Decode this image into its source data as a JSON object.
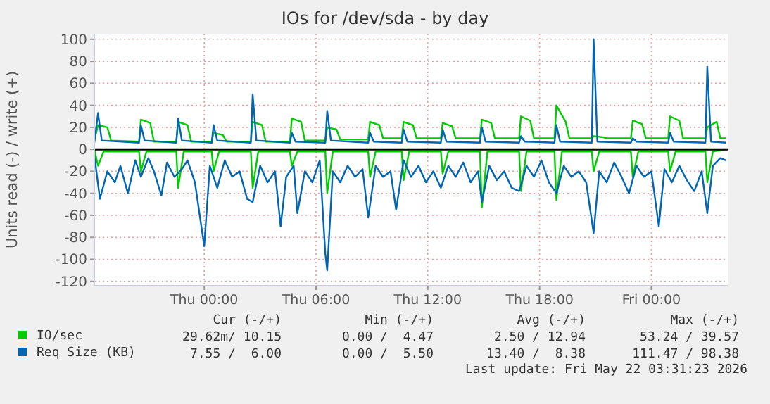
{
  "chart_data": {
    "type": "line",
    "title": "IOs for /dev/sda - by day",
    "ylabel": "Units read (-) / write (+)",
    "xlim": [
      "2026-05-20T18:06",
      "2026-05-22T04:06"
    ],
    "xticks": [
      {
        "value": "2026-05-21T00:00",
        "label": "Thu 00:00"
      },
      {
        "value": "2026-05-21T06:00",
        "label": "Thu 06:00"
      },
      {
        "value": "2026-05-21T12:00",
        "label": "Thu 12:00"
      },
      {
        "value": "2026-05-21T18:00",
        "label": "Thu 18:00"
      },
      {
        "value": "2026-05-22T00:00",
        "label": "Fri 00:00"
      }
    ],
    "ylim": [
      -124,
      105
    ],
    "yticks": [
      -120,
      -100,
      -80,
      -60,
      -40,
      -20,
      0,
      20,
      40,
      60,
      80,
      100
    ],
    "grid": true,
    "legend": "bottom",
    "line_style": "solid",
    "ref_lines": [
      {
        "axis": "y",
        "value": 0,
        "color": "#000000"
      }
    ],
    "series": [
      {
        "color": "#00cc00",
        "x": [
          "2026-05-20T18:06",
          "2026-05-20T18:18",
          "2026-05-20T18:36",
          "2026-05-20T20:30",
          "2026-05-20T20:36",
          "2026-05-20T20:54",
          "2026-05-20T22:30",
          "2026-05-20T22:36",
          "2026-05-20T22:54",
          "2026-05-21T00:24",
          "2026-05-21T00:30",
          "2026-05-21T00:48",
          "2026-05-21T02:30",
          "2026-05-21T02:36",
          "2026-05-21T02:54",
          "2026-05-21T04:36",
          "2026-05-21T04:42",
          "2026-05-21T05:00",
          "2026-05-21T06:30",
          "2026-05-21T06:36",
          "2026-05-21T06:54",
          "2026-05-21T08:48",
          "2026-05-21T08:54",
          "2026-05-21T09:12",
          "2026-05-21T10:36",
          "2026-05-21T10:42",
          "2026-05-21T11:00",
          "2026-05-21T12:42",
          "2026-05-21T12:48",
          "2026-05-21T13:06",
          "2026-05-21T14:48",
          "2026-05-21T14:54",
          "2026-05-21T15:12",
          "2026-05-21T16:54",
          "2026-05-21T17:00",
          "2026-05-21T17:18",
          "2026-05-21T18:48",
          "2026-05-21T18:54",
          "2026-05-21T19:12",
          "2026-05-21T20:48",
          "2026-05-21T20:54",
          "2026-05-21T21:12",
          "2026-05-21T22:54",
          "2026-05-21T23:00",
          "2026-05-21T23:18",
          "2026-05-22T00:54",
          "2026-05-22T01:00",
          "2026-05-22T01:18",
          "2026-05-22T02:54",
          "2026-05-22T03:00",
          "2026-05-22T03:18",
          "2026-05-22T04:00"
        ],
        "values": [
          0,
          -15,
          -2,
          -2,
          -20,
          -2,
          -2,
          -35,
          -2,
          -2,
          -20,
          -2,
          -2,
          -35,
          -2,
          -2,
          -15,
          -2,
          -2,
          -40,
          -2,
          -2,
          -25,
          -2,
          -2,
          -28,
          -2,
          -2,
          -22,
          -2,
          -2,
          -53,
          -2,
          -2,
          -38,
          -2,
          -2,
          -46,
          -2,
          -2,
          -20,
          -2,
          -2,
          -25,
          -2,
          -2,
          -20,
          -2,
          -2,
          -30,
          -2,
          0
        ]
      },
      {
        "color": "#0066b3",
        "x": [
          "2026-05-20T18:06",
          "2026-05-20T18:24",
          "2026-05-20T18:48",
          "2026-05-20T19:12",
          "2026-05-20T19:30",
          "2026-05-20T19:54",
          "2026-05-20T20:18",
          "2026-05-20T20:36",
          "2026-05-20T21:00",
          "2026-05-20T21:18",
          "2026-05-20T21:42",
          "2026-05-20T22:00",
          "2026-05-20T22:24",
          "2026-05-20T22:48",
          "2026-05-20T23:06",
          "2026-05-20T23:30",
          "2026-05-21T00:00",
          "2026-05-21T00:18",
          "2026-05-21T00:42",
          "2026-05-21T01:06",
          "2026-05-21T01:30",
          "2026-05-21T01:54",
          "2026-05-21T02:18",
          "2026-05-21T02:36",
          "2026-05-21T03:00",
          "2026-05-21T03:24",
          "2026-05-21T03:48",
          "2026-05-21T04:06",
          "2026-05-21T04:24",
          "2026-05-21T04:48",
          "2026-05-21T05:00",
          "2026-05-21T05:24",
          "2026-05-21T05:48",
          "2026-05-21T06:12",
          "2026-05-21T06:30",
          "2026-05-21T06:36",
          "2026-05-21T06:54",
          "2026-05-21T07:18",
          "2026-05-21T07:42",
          "2026-05-21T08:06",
          "2026-05-21T08:30",
          "2026-05-21T08:48",
          "2026-05-21T09:12",
          "2026-05-21T09:36",
          "2026-05-21T10:00",
          "2026-05-21T10:18",
          "2026-05-21T10:42",
          "2026-05-21T11:06",
          "2026-05-21T11:30",
          "2026-05-21T11:54",
          "2026-05-21T12:18",
          "2026-05-21T12:42",
          "2026-05-21T13:06",
          "2026-05-21T13:30",
          "2026-05-21T13:54",
          "2026-05-21T14:18",
          "2026-05-21T14:42",
          "2026-05-21T14:54",
          "2026-05-21T15:18",
          "2026-05-21T15:42",
          "2026-05-21T16:06",
          "2026-05-21T16:30",
          "2026-05-21T16:54",
          "2026-05-21T17:18",
          "2026-05-21T17:42",
          "2026-05-21T18:06",
          "2026-05-21T18:30",
          "2026-05-21T18:54",
          "2026-05-21T19:18",
          "2026-05-21T19:42",
          "2026-05-21T20:06",
          "2026-05-21T20:30",
          "2026-05-21T20:54",
          "2026-05-21T21:12",
          "2026-05-21T21:36",
          "2026-05-21T22:00",
          "2026-05-21T22:24",
          "2026-05-21T22:48",
          "2026-05-21T23:12",
          "2026-05-21T23:36",
          "2026-05-22T00:00",
          "2026-05-22T00:24",
          "2026-05-22T00:42",
          "2026-05-22T01:06",
          "2026-05-22T01:30",
          "2026-05-22T01:54",
          "2026-05-22T02:18",
          "2026-05-22T02:42",
          "2026-05-22T03:00",
          "2026-05-22T03:18",
          "2026-05-22T03:42",
          "2026-05-22T04:00"
        ],
        "values": [
          -5,
          -45,
          -20,
          -30,
          -15,
          -40,
          -10,
          -25,
          -8,
          -20,
          -42,
          -12,
          -25,
          -18,
          -10,
          -30,
          -88,
          -15,
          -35,
          -10,
          -25,
          -20,
          -45,
          -48,
          -15,
          -30,
          -20,
          -70,
          -25,
          -15,
          -58,
          -20,
          -30,
          -10,
          -95,
          -110,
          -20,
          -30,
          -15,
          -25,
          -18,
          -62,
          -15,
          -25,
          -20,
          -55,
          -10,
          -25,
          -15,
          -30,
          -20,
          -35,
          -15,
          -25,
          -12,
          -30,
          -20,
          -48,
          -15,
          -28,
          -20,
          -35,
          -38,
          -15,
          -25,
          -10,
          -30,
          -40,
          -15,
          -25,
          -20,
          -30,
          -76,
          -20,
          -30,
          -12,
          -25,
          -40,
          -15,
          -25,
          -20,
          -70,
          -18,
          -30,
          -15,
          -28,
          -38,
          -20,
          -58,
          -15,
          -8,
          -10
        ]
      },
      {
        "name": "IO/sec",
        "color": "#00cc00",
        "x": [
          "2026-05-20T18:06",
          "2026-05-20T18:18",
          "2026-05-20T18:48",
          "2026-05-20T19:00",
          "2026-05-20T20:30",
          "2026-05-20T20:36",
          "2026-05-20T21:06",
          "2026-05-20T21:18",
          "2026-05-20T22:30",
          "2026-05-20T22:36",
          "2026-05-20T23:06",
          "2026-05-20T23:18",
          "2026-05-21T00:24",
          "2026-05-21T00:30",
          "2026-05-21T01:00",
          "2026-05-21T01:12",
          "2026-05-21T02:30",
          "2026-05-21T02:36",
          "2026-05-21T03:06",
          "2026-05-21T03:18",
          "2026-05-21T04:36",
          "2026-05-21T04:42",
          "2026-05-21T05:12",
          "2026-05-21T05:24",
          "2026-05-21T06:30",
          "2026-05-21T06:36",
          "2026-05-21T07:06",
          "2026-05-21T07:18",
          "2026-05-21T08:48",
          "2026-05-21T08:54",
          "2026-05-21T09:24",
          "2026-05-21T09:36",
          "2026-05-21T10:36",
          "2026-05-21T10:42",
          "2026-05-21T11:12",
          "2026-05-21T11:24",
          "2026-05-21T12:42",
          "2026-05-21T12:48",
          "2026-05-21T13:18",
          "2026-05-21T13:30",
          "2026-05-21T14:48",
          "2026-05-21T14:54",
          "2026-05-21T15:24",
          "2026-05-21T15:36",
          "2026-05-21T16:54",
          "2026-05-21T17:00",
          "2026-05-21T17:30",
          "2026-05-21T17:42",
          "2026-05-21T18:48",
          "2026-05-21T18:54",
          "2026-05-21T19:24",
          "2026-05-21T19:36",
          "2026-05-21T20:48",
          "2026-05-21T20:54",
          "2026-05-21T21:24",
          "2026-05-21T21:36",
          "2026-05-21T22:54",
          "2026-05-21T23:00",
          "2026-05-21T23:30",
          "2026-05-21T23:42",
          "2026-05-22T00:54",
          "2026-05-22T01:00",
          "2026-05-22T01:30",
          "2026-05-22T01:42",
          "2026-05-22T02:54",
          "2026-05-22T03:00",
          "2026-05-22T03:30",
          "2026-05-22T03:42",
          "2026-05-22T04:00"
        ],
        "values": [
          8,
          22,
          20,
          8,
          7,
          27,
          24,
          7,
          7,
          25,
          22,
          7,
          7,
          15,
          13,
          7,
          7,
          25,
          22,
          7,
          7,
          28,
          25,
          8,
          8,
          20,
          18,
          9,
          9,
          25,
          22,
          10,
          10,
          25,
          22,
          10,
          10,
          24,
          21,
          10,
          10,
          27,
          24,
          10,
          10,
          30,
          26,
          10,
          10,
          40,
          25,
          10,
          10,
          12,
          11,
          10,
          10,
          26,
          23,
          10,
          10,
          30,
          26,
          10,
          10,
          20,
          25,
          10,
          10
        ]
      },
      {
        "name": "Req Size (KB)",
        "color": "#0066b3",
        "x": [
          "2026-05-20T18:06",
          "2026-05-20T18:18",
          "2026-05-20T18:30",
          "2026-05-20T20:30",
          "2026-05-20T20:36",
          "2026-05-20T20:48",
          "2026-05-20T22:30",
          "2026-05-20T22:36",
          "2026-05-20T22:48",
          "2026-05-21T00:24",
          "2026-05-21T00:30",
          "2026-05-21T00:42",
          "2026-05-21T02:30",
          "2026-05-21T02:36",
          "2026-05-21T02:48",
          "2026-05-21T04:36",
          "2026-05-21T04:42",
          "2026-05-21T04:54",
          "2026-05-21T06:30",
          "2026-05-21T06:36",
          "2026-05-21T06:48",
          "2026-05-21T08:48",
          "2026-05-21T08:54",
          "2026-05-21T09:06",
          "2026-05-21T10:36",
          "2026-05-21T10:42",
          "2026-05-21T10:54",
          "2026-05-21T12:42",
          "2026-05-21T12:48",
          "2026-05-21T13:00",
          "2026-05-21T14:48",
          "2026-05-21T14:54",
          "2026-05-21T15:06",
          "2026-05-21T16:54",
          "2026-05-21T17:00",
          "2026-05-21T17:12",
          "2026-05-21T18:48",
          "2026-05-21T18:54",
          "2026-05-21T19:06",
          "2026-05-21T20:48",
          "2026-05-21T20:54",
          "2026-05-21T21:06",
          "2026-05-21T22:54",
          "2026-05-21T23:00",
          "2026-05-21T23:12",
          "2026-05-22T00:54",
          "2026-05-22T01:00",
          "2026-05-22T01:12",
          "2026-05-22T02:54",
          "2026-05-22T03:00",
          "2026-05-22T03:12",
          "2026-05-22T04:00"
        ],
        "values": [
          6,
          33,
          8,
          6,
          22,
          8,
          6,
          28,
          8,
          6,
          22,
          8,
          6,
          50,
          8,
          6,
          15,
          7,
          6,
          35,
          8,
          6,
          15,
          7,
          6,
          18,
          7,
          6,
          18,
          7,
          6,
          20,
          7,
          6,
          12,
          7,
          6,
          22,
          7,
          6,
          100,
          7,
          6,
          10,
          7,
          6,
          15,
          7,
          6,
          75,
          7,
          6
        ]
      }
    ],
    "annotations": [
      "Cur (-/+)",
      "Min (-/+)",
      "Avg (-/+)",
      "Max (-/+)",
      "29.62m/ 10.15",
      "0.00 /  4.47",
      "2.50 / 12.94",
      "53.24 / 39.57",
      "7.55 /  6.00",
      "0.00 /  5.50",
      "13.40 /  8.38",
      "111.47 / 98.38",
      "Last update: Fri May 22 03:31:23 2026"
    ]
  }
}
